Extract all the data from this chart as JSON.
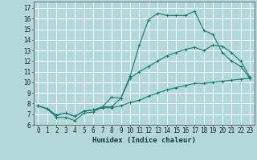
{
  "title": "",
  "xlabel": "Humidex (Indice chaleur)",
  "bg_color": "#b2d8d8",
  "grid_color": "#ffffff",
  "line_color": "#1a7a6e",
  "xlim": [
    -0.5,
    23.5
  ],
  "ylim": [
    6.0,
    17.6
  ],
  "xticks": [
    0,
    1,
    2,
    3,
    4,
    5,
    6,
    7,
    8,
    9,
    10,
    11,
    12,
    13,
    14,
    15,
    16,
    17,
    18,
    19,
    20,
    21,
    22,
    23
  ],
  "yticks": [
    6,
    7,
    8,
    9,
    10,
    11,
    12,
    13,
    14,
    15,
    16,
    17
  ],
  "line1_x": [
    0,
    1,
    2,
    3,
    4,
    5,
    6,
    7,
    8,
    9,
    10,
    11,
    12,
    13,
    14,
    15,
    16,
    17,
    18,
    19,
    20,
    21,
    22,
    23
  ],
  "line1_y": [
    7.8,
    7.5,
    6.7,
    6.7,
    6.4,
    7.1,
    7.2,
    7.7,
    8.6,
    8.5,
    10.6,
    13.5,
    15.9,
    16.5,
    16.3,
    16.3,
    16.3,
    16.7,
    14.9,
    14.5,
    12.8,
    12.0,
    11.5,
    10.4
  ],
  "line2_x": [
    0,
    1,
    2,
    3,
    4,
    5,
    6,
    7,
    8,
    9,
    10,
    11,
    12,
    13,
    14,
    15,
    16,
    17,
    18,
    19,
    20,
    21,
    22,
    23
  ],
  "line2_y": [
    7.8,
    7.5,
    6.9,
    7.1,
    6.8,
    7.3,
    7.4,
    7.7,
    7.7,
    8.5,
    10.4,
    11.0,
    11.5,
    12.0,
    12.5,
    12.8,
    13.1,
    13.3,
    13.0,
    13.5,
    13.4,
    12.8,
    12.0,
    10.5
  ],
  "line3_x": [
    0,
    1,
    2,
    3,
    4,
    5,
    6,
    7,
    8,
    9,
    10,
    11,
    12,
    13,
    14,
    15,
    16,
    17,
    18,
    19,
    20,
    21,
    22,
    23
  ],
  "line3_y": [
    7.8,
    7.5,
    6.9,
    7.1,
    6.8,
    7.3,
    7.4,
    7.6,
    7.6,
    7.8,
    8.1,
    8.3,
    8.7,
    9.0,
    9.3,
    9.5,
    9.7,
    9.9,
    9.9,
    10.0,
    10.1,
    10.2,
    10.3,
    10.4
  ],
  "tick_fontsize": 5.5,
  "xlabel_fontsize": 6.5,
  "marker_size": 3,
  "linewidth": 0.8
}
